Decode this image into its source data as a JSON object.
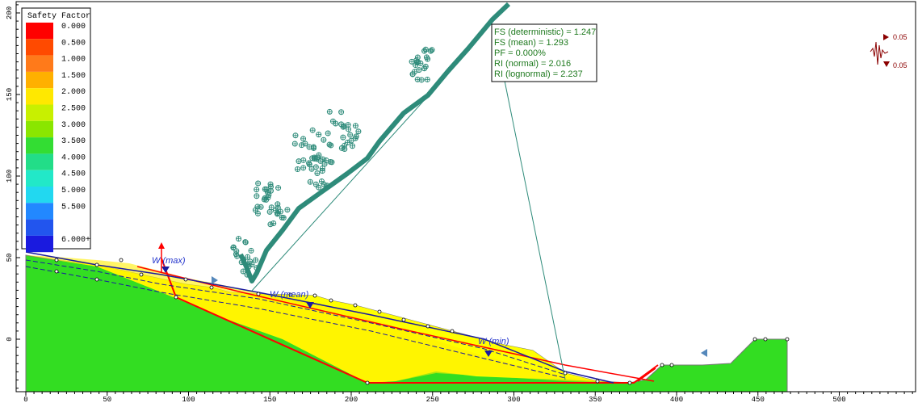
{
  "legend": {
    "title": "Safety Factor",
    "items": [
      {
        "label": "0.000",
        "color": "#ff0000"
      },
      {
        "label": "0.500",
        "color": "#ff4a00"
      },
      {
        "label": "1.000",
        "color": "#ff7a1a"
      },
      {
        "label": "1.500",
        "color": "#ffb000"
      },
      {
        "label": "2.000",
        "color": "#ffe800"
      },
      {
        "label": "2.500",
        "color": "#c8f000"
      },
      {
        "label": "3.000",
        "color": "#8ae600"
      },
      {
        "label": "3.500",
        "color": "#33dd33"
      },
      {
        "label": "4.000",
        "color": "#22dd88"
      },
      {
        "label": "4.500",
        "color": "#22e8c8"
      },
      {
        "label": "5.000",
        "color": "#22d8f0"
      },
      {
        "label": "5.500",
        "color": "#2288ff"
      },
      {
        "label": "",
        "color": "#2255ee"
      },
      {
        "label": "6.000+",
        "color": "#1a1adf"
      }
    ]
  },
  "info_box": {
    "lines": [
      "FS (deterministic) = 1.247",
      "FS (mean) = 1.293",
      "PF = 0.000%",
      "RI (normal) = 2.016",
      "RI (lognormal) = 2.237"
    ]
  },
  "water_labels": {
    "max": "W (max)",
    "mean": "W (mean)",
    "min": "W (min)"
  },
  "seismic": {
    "horizontal": "0.05",
    "vertical": "0.05"
  },
  "axes": {
    "x_ticks": [
      "0",
      "50",
      "100",
      "150",
      "200",
      "250",
      "300",
      "350",
      "400",
      "450",
      "500"
    ],
    "y_ticks": [
      "0",
      "50",
      "100",
      "150",
      "200"
    ]
  },
  "colors": {
    "ground": "#33dd22",
    "slip_zone": "#ffff00",
    "trajectory": "#2e8b7a",
    "critical_surface": "#ff0000",
    "water_table": "#0000cc"
  }
}
